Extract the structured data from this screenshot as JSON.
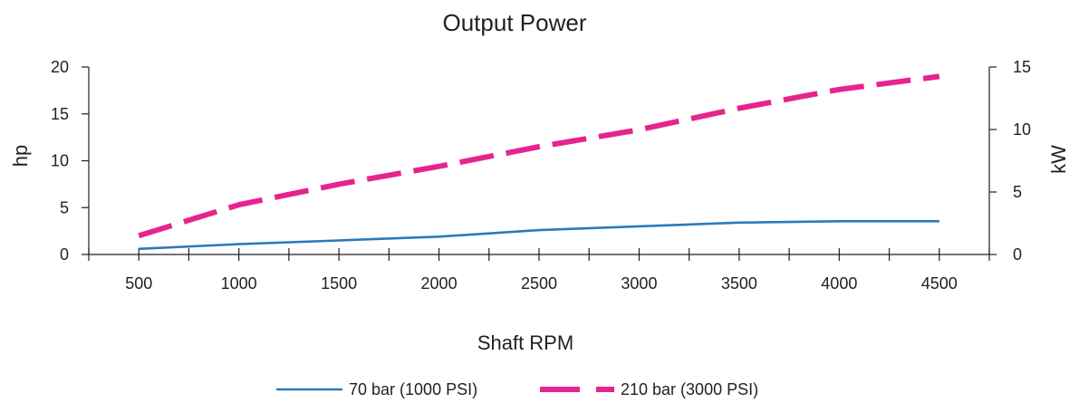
{
  "chart_data": {
    "type": "line",
    "title": "Output Power",
    "xlabel": "Shaft RPM",
    "ylabel_left": "hp",
    "ylabel_right": "kW",
    "x": [
      500,
      1000,
      1500,
      2000,
      2500,
      3000,
      3500,
      4000,
      4500
    ],
    "x_tick_labels": [
      "500",
      "1000",
      "1500",
      "2000",
      "2500",
      "3000",
      "3500",
      "4000",
      "4500"
    ],
    "xlim": [
      250,
      4750
    ],
    "ylim_left": [
      0,
      20
    ],
    "ylim_right": [
      0,
      15
    ],
    "y_left_ticks": [
      0,
      5,
      10,
      15,
      20
    ],
    "y_left_tick_labels": [
      "0",
      "5",
      "10",
      "15",
      "20"
    ],
    "y_right_ticks": [
      0,
      5,
      10,
      15
    ],
    "y_right_tick_labels": [
      "0",
      "5",
      "10",
      "15"
    ],
    "grid": false,
    "legend_position": "bottom-center",
    "series": [
      {
        "name": "70 bar (1000 PSI)",
        "values": [
          0.6,
          1.1,
          1.5,
          1.9,
          2.6,
          3.0,
          3.4,
          3.55,
          3.55
        ],
        "color": "#2a7ab9",
        "style": "solid"
      },
      {
        "name": "210 bar (3000 PSI)",
        "values": [
          2.0,
          5.3,
          7.5,
          9.4,
          11.5,
          13.3,
          15.6,
          17.6,
          19.0
        ],
        "color": "#e6248e",
        "style": "dashed"
      }
    ]
  }
}
